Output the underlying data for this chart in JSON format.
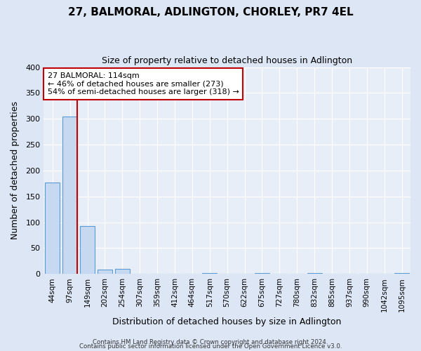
{
  "title": "27, BALMORAL, ADLINGTON, CHORLEY, PR7 4EL",
  "subtitle": "Size of property relative to detached houses in Adlington",
  "xlabel": "Distribution of detached houses by size in Adlington",
  "ylabel": "Number of detached properties",
  "bar_labels": [
    "44sqm",
    "97sqm",
    "149sqm",
    "202sqm",
    "254sqm",
    "307sqm",
    "359sqm",
    "412sqm",
    "464sqm",
    "517sqm",
    "570sqm",
    "622sqm",
    "675sqm",
    "727sqm",
    "780sqm",
    "832sqm",
    "885sqm",
    "937sqm",
    "990sqm",
    "1042sqm",
    "1095sqm"
  ],
  "bar_values": [
    177,
    305,
    92,
    9,
    10,
    0,
    0,
    0,
    0,
    1,
    0,
    0,
    2,
    0,
    0,
    1,
    0,
    0,
    0,
    0,
    2
  ],
  "bar_color": "#c6d9f1",
  "bar_edge_color": "#5b9bd5",
  "vline_x": 1.42,
  "vline_color": "#c00000",
  "annotation_box_text": "27 BALMORAL: 114sqm\n← 46% of detached houses are smaller (273)\n54% of semi-detached houses are larger (318) →",
  "annotation_box_color": "#c00000",
  "ylim": [
    0,
    400
  ],
  "yticks": [
    0,
    50,
    100,
    150,
    200,
    250,
    300,
    350,
    400
  ],
  "footer_line1": "Contains HM Land Registry data © Crown copyright and database right 2024.",
  "footer_line2": "Contains public sector information licensed under the Open Government Licence v3.0.",
  "bg_color": "#dce6f5",
  "plot_bg_color": "#e8eef8"
}
